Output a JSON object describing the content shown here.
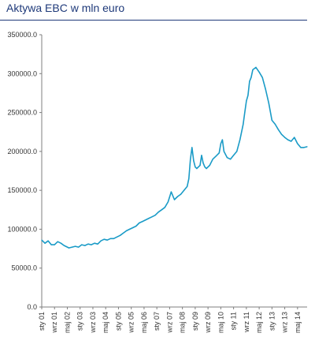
{
  "chart_data": {
    "type": "line",
    "title": "Aktywa EBC w mln euro",
    "xlabel": "",
    "ylabel": "",
    "ylim": [
      0,
      350000
    ],
    "y_ticks": [
      "0.0",
      "50000.0",
      "100000.0",
      "150000.0",
      "200000.0",
      "250000.0",
      "300000.0",
      "350000.0"
    ],
    "x_ticks": [
      "sty 01",
      "wrz 01",
      "maj 02",
      "sty 03",
      "wrz 03",
      "maj 04",
      "sty 05",
      "wrz 05",
      "maj 06",
      "sty 07",
      "wrz 07",
      "maj 08",
      "sty 09",
      "wrz 09",
      "maj 10",
      "sty 11",
      "wrz 11",
      "maj 12",
      "sty 13",
      "wrz 13",
      "maj 14"
    ],
    "x_range": [
      "2001-01",
      "2014-11"
    ],
    "grid": false,
    "legend": "none",
    "color": "#1a9bc7",
    "series": [
      {
        "x": [
          "2001-01",
          "2001-03",
          "2001-05",
          "2001-07",
          "2001-09",
          "2001-11",
          "2002-01",
          "2002-03",
          "2002-04",
          "2002-06",
          "2002-08",
          "2002-10",
          "2002-12",
          "2003-02",
          "2003-04",
          "2003-06",
          "2003-08",
          "2003-10",
          "2003-12",
          "2004-02",
          "2004-04",
          "2004-06",
          "2004-08",
          "2004-10",
          "2004-12",
          "2005-02",
          "2005-04",
          "2005-06",
          "2005-08",
          "2005-10",
          "2005-12",
          "2006-02",
          "2006-04",
          "2006-06",
          "2006-08",
          "2006-10",
          "2006-12",
          "2007-02",
          "2007-04",
          "2007-06",
          "2007-08",
          "2007-10",
          "2007-12",
          "2008-01",
          "2008-02",
          "2008-04",
          "2008-06",
          "2008-08",
          "2008-09",
          "2008-10",
          "2008-11",
          "2008-12",
          "2009-01",
          "2009-02",
          "2009-04",
          "2009-05",
          "2009-06",
          "2009-07",
          "2009-08",
          "2009-10",
          "2009-12",
          "2010-02",
          "2010-04",
          "2010-05",
          "2010-06",
          "2010-07",
          "2010-09",
          "2010-11",
          "2011-01",
          "2011-03",
          "2011-05",
          "2011-07",
          "2011-08",
          "2011-09",
          "2011-10",
          "2011-11",
          "2011-12",
          "2012-01",
          "2012-03",
          "2012-05",
          "2012-07",
          "2012-09",
          "2012-11",
          "2013-01",
          "2013-03",
          "2013-05",
          "2013-07",
          "2013-09",
          "2013-11",
          "2014-01",
          "2014-03",
          "2014-05",
          "2014-07",
          "2014-09",
          "2014-11"
        ],
        "values": [
          86000,
          82000,
          85000,
          80000,
          80000,
          84000,
          82000,
          79000,
          78000,
          76000,
          77000,
          78000,
          77000,
          80000,
          79000,
          81000,
          80000,
          82000,
          81000,
          85000,
          87000,
          86000,
          88000,
          88000,
          90000,
          92000,
          95000,
          98000,
          100000,
          102000,
          104000,
          108000,
          110000,
          112000,
          114000,
          116000,
          118000,
          122000,
          125000,
          128000,
          135000,
          148000,
          138000,
          140000,
          142000,
          145000,
          150000,
          155000,
          165000,
          190000,
          205000,
          188000,
          180000,
          178000,
          182000,
          195000,
          185000,
          180000,
          178000,
          182000,
          190000,
          194000,
          198000,
          210000,
          215000,
          200000,
          192000,
          190000,
          195000,
          200000,
          215000,
          235000,
          250000,
          265000,
          272000,
          290000,
          295000,
          305000,
          308000,
          302000,
          295000,
          280000,
          262000,
          240000,
          235000,
          228000,
          222000,
          218000,
          215000,
          213000,
          218000,
          210000,
          205000,
          205000,
          206000
        ]
      }
    ]
  }
}
